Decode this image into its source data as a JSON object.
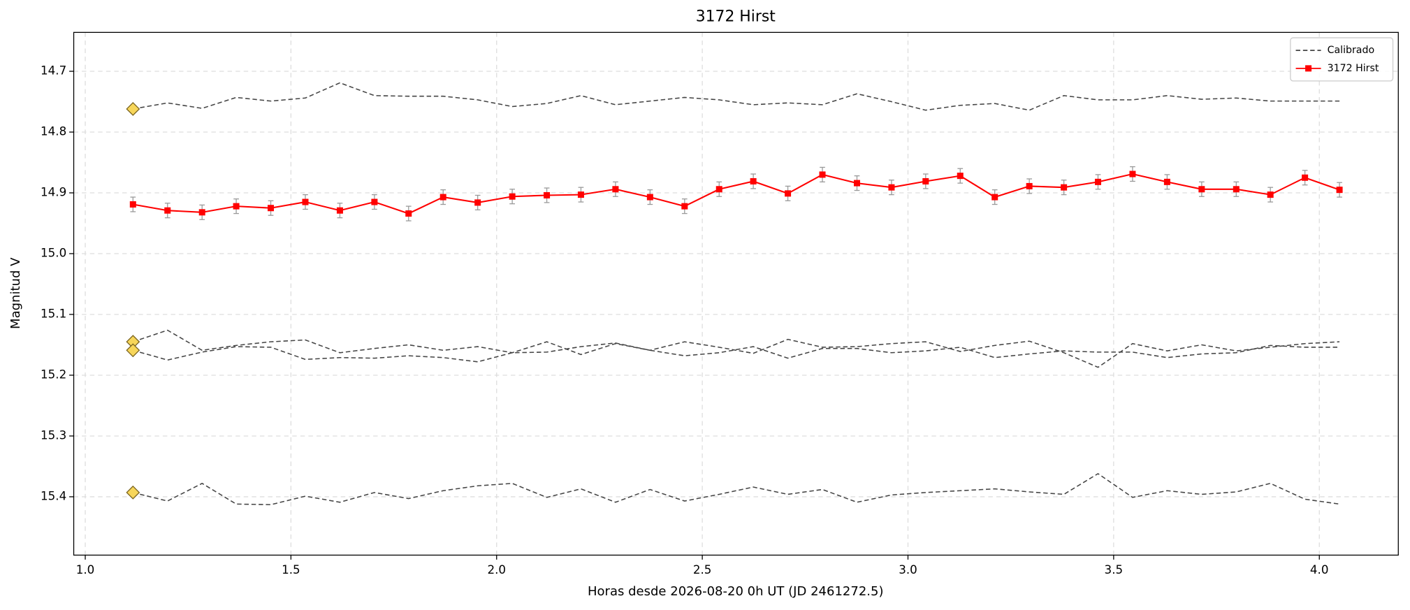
{
  "chart_data": {
    "type": "line",
    "title": "3172 Hirst",
    "x_label": "Horas desde 2026-08-20 0h UT (JD 2461272.5)",
    "y_label": "Magnitud V",
    "xlim": [
      0.972,
      4.192
    ],
    "ylim": [
      15.496,
      14.636
    ],
    "xticks": [
      {
        "value": 1,
        "label": "1.0"
      },
      1.5,
      {
        "value": 2,
        "label": "2.0"
      },
      2.5,
      {
        "value": 3,
        "label": "3.0"
      },
      3.5,
      {
        "value": 4,
        "label": "4.0"
      }
    ],
    "yticks": [
      14.7,
      14.8,
      14.9,
      {
        "value": 15,
        "label": "15.0"
      },
      15.1,
      15.2,
      15.3,
      15.4
    ],
    "grid": true,
    "legend": "upper right",
    "x": [
      1.116,
      1.2,
      1.284,
      1.367,
      1.451,
      1.535,
      1.619,
      1.703,
      1.786,
      1.87,
      1.954,
      2.038,
      2.122,
      2.205,
      2.289,
      2.373,
      2.457,
      2.541,
      2.624,
      2.708,
      2.792,
      2.876,
      2.96,
      3.043,
      3.127,
      3.211,
      3.295,
      3.379,
      3.462,
      3.546,
      3.63,
      3.714,
      3.798,
      3.881,
      3.965,
      4.049
    ],
    "series": [
      {
        "name": "Calibrado",
        "color": "#444444",
        "style": "dashed",
        "start_marker": "#f7d65a",
        "values": [
          14.762,
          14.752,
          14.761,
          14.743,
          14.749,
          14.744,
          14.719,
          14.74,
          14.741,
          14.741,
          14.747,
          14.758,
          14.753,
          14.74,
          14.755,
          14.749,
          14.743,
          14.747,
          14.755,
          14.752,
          14.755,
          14.737,
          14.75,
          14.764,
          14.756,
          14.753,
          14.764,
          14.74,
          14.747,
          14.747,
          14.74,
          14.746,
          14.744,
          14.749,
          14.749,
          14.749
        ]
      },
      {
        "color": "#444444",
        "style": "dashed",
        "start_marker": "#f7d65a",
        "values": [
          15.145,
          15.126,
          15.159,
          15.151,
          15.145,
          15.142,
          15.163,
          15.156,
          15.15,
          15.159,
          15.153,
          15.163,
          15.145,
          15.166,
          15.148,
          15.159,
          15.145,
          15.154,
          15.164,
          15.141,
          15.154,
          15.153,
          15.148,
          15.145,
          15.161,
          15.151,
          15.144,
          15.163,
          15.187,
          15.148,
          15.16,
          15.15,
          15.16,
          15.154,
          15.148,
          15.145
        ]
      },
      {
        "color": "#444444",
        "style": "dashed",
        "start_marker": "#f7d65a",
        "values": [
          15.159,
          15.175,
          15.162,
          15.153,
          15.154,
          15.174,
          15.171,
          15.172,
          15.168,
          15.171,
          15.178,
          15.163,
          15.162,
          15.153,
          15.147,
          15.159,
          15.168,
          15.163,
          15.153,
          15.172,
          15.156,
          15.156,
          15.163,
          15.16,
          15.154,
          15.171,
          15.165,
          15.16,
          15.162,
          15.162,
          15.171,
          15.165,
          15.163,
          15.151,
          15.154,
          15.154
        ]
      },
      {
        "color": "#444444",
        "style": "dashed",
        "start_marker": "#f7d65a",
        "values": [
          15.393,
          15.407,
          15.378,
          15.412,
          15.413,
          15.399,
          15.409,
          15.393,
          15.403,
          15.39,
          15.382,
          15.378,
          15.401,
          15.387,
          15.409,
          15.388,
          15.407,
          15.396,
          15.384,
          15.396,
          15.388,
          15.409,
          15.397,
          15.393,
          15.39,
          15.387,
          15.392,
          15.396,
          15.362,
          15.401,
          15.39,
          15.396,
          15.392,
          15.378,
          15.404,
          15.412
        ]
      },
      {
        "name": "3172 Hirst",
        "color": "#ff0000",
        "style": "solid",
        "marker": "square",
        "values": [
          14.919,
          14.929,
          14.932,
          14.922,
          14.925,
          14.915,
          14.929,
          14.915,
          14.934,
          14.907,
          14.916,
          14.906,
          14.904,
          14.903,
          14.894,
          14.907,
          14.922,
          14.894,
          14.881,
          14.901,
          14.87,
          14.884,
          14.891,
          14.881,
          14.872,
          14.907,
          14.889,
          14.891,
          14.882,
          14.869,
          14.882,
          14.894,
          14.894,
          14.903,
          14.875,
          14.895
        ],
        "errors": [
          0.012,
          0.012,
          0.012,
          0.012,
          0.012,
          0.012,
          0.012,
          0.012,
          0.012,
          0.012,
          0.012,
          0.012,
          0.012,
          0.012,
          0.012,
          0.012,
          0.012,
          0.012,
          0.012,
          0.012,
          0.012,
          0.012,
          0.012,
          0.012,
          0.012,
          0.012,
          0.012,
          0.012,
          0.012,
          0.012,
          0.012,
          0.012,
          0.012,
          0.012,
          0.012,
          0.012
        ]
      }
    ]
  }
}
